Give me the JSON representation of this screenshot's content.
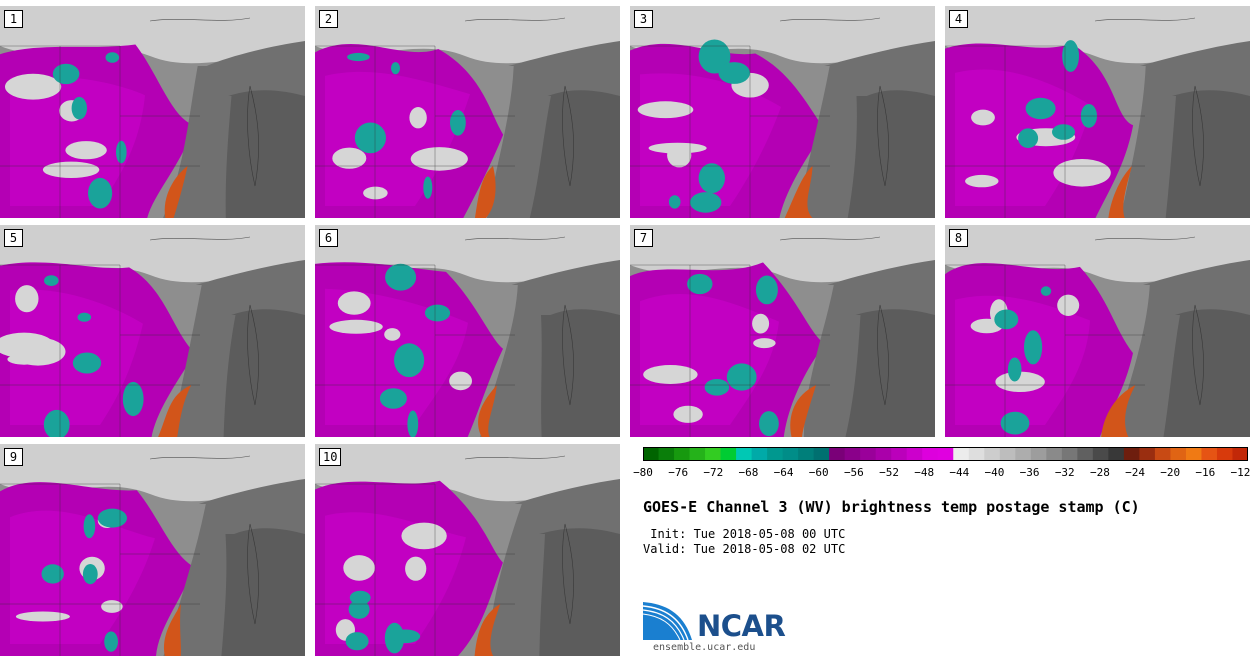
{
  "stamps": [
    "1",
    "2",
    "3",
    "4",
    "5",
    "6",
    "7",
    "8",
    "9",
    "10"
  ],
  "colorbar": {
    "colors": [
      "#006400",
      "#0a7e0a",
      "#17990f",
      "#25b21a",
      "#33cc22",
      "#00cc33",
      "#00c8b4",
      "#00aaa8",
      "#00988f",
      "#008d88",
      "#007f7a",
      "#007070",
      "#7a0078",
      "#8a008a",
      "#9a009a",
      "#aa00aa",
      "#bb00bb",
      "#cc00cc",
      "#dd00dd",
      "#e000e0",
      "#ececec",
      "#dedede",
      "#cdcdcd",
      "#bdbdbd",
      "#adadad",
      "#9d9d9d",
      "#8a8a8a",
      "#777777",
      "#606060",
      "#4a4a4a",
      "#383838",
      "#6e1e0e",
      "#9a2e10",
      "#c84a14",
      "#e06414",
      "#f07a14",
      "#e65414",
      "#d83a0c",
      "#c22808"
    ],
    "tick_labels": [
      "−80",
      "−76",
      "−72",
      "−68",
      "−64",
      "−60",
      "−56",
      "−52",
      "−48",
      "−44",
      "−40",
      "−36",
      "−32",
      "−28",
      "−24",
      "−20",
      "−16",
      "−12"
    ]
  },
  "title": "GOES-E Channel 3 (WV) brightness temp postage stamp (C)",
  "init": " Init: Tue 2018-05-08 00 UTC",
  "valid": "Valid: Tue 2018-05-08 02 UTC",
  "logo": {
    "name": "NCAR",
    "url": "ensemble.ucar.edu"
  }
}
